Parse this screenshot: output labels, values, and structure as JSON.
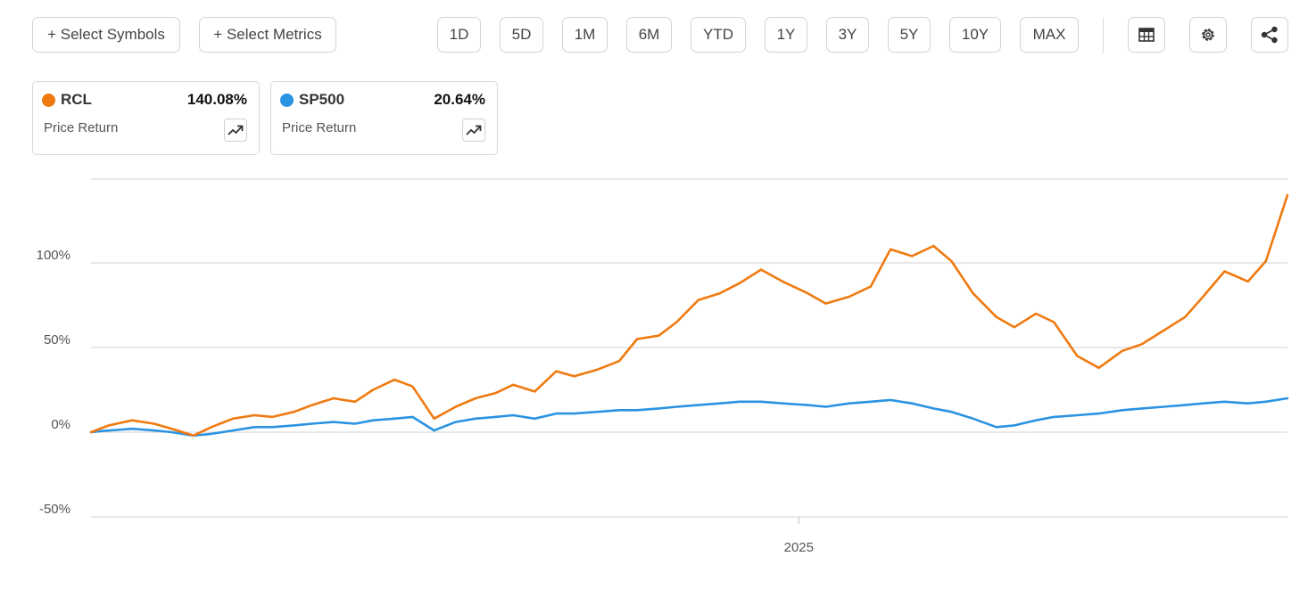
{
  "toolbar": {
    "select_symbols": "+ Select Symbols",
    "select_metrics": "+ Select Metrics",
    "ranges": [
      "1D",
      "5D",
      "1M",
      "6M",
      "YTD",
      "1Y",
      "3Y",
      "5Y",
      "10Y",
      "MAX"
    ],
    "icons": [
      "table-icon",
      "gear-icon",
      "share-icon"
    ]
  },
  "legend": [
    {
      "name": "RCL",
      "value": "140.08%",
      "subtitle": "Price Return",
      "color": "#f07a10"
    },
    {
      "name": "SP500",
      "value": "20.64%",
      "subtitle": "Price Return",
      "color": "#2a93e2"
    }
  ],
  "chart_data": {
    "type": "line",
    "title": "",
    "xlabel": "",
    "ylabel": "",
    "ylim": [
      -50,
      150
    ],
    "yticks": [
      -50,
      0,
      50,
      100
    ],
    "ytick_labels": [
      "-50%",
      "0%",
      "50%",
      "100%"
    ],
    "xtick_labels": [
      "2025"
    ],
    "grid": "horizontal",
    "series": [
      {
        "name": "RCL",
        "color": "#f07a10",
        "x": [
          "2023-12-04",
          "2023-12-14",
          "2023-12-27",
          "2024-01-08",
          "2024-01-18",
          "2024-01-30",
          "2024-02-09",
          "2024-02-21",
          "2024-03-04",
          "2024-03-14",
          "2024-03-26",
          "2024-04-05",
          "2024-04-17",
          "2024-04-29",
          "2024-05-09",
          "2024-05-21",
          "2024-05-31",
          "2024-06-12",
          "2024-06-24",
          "2024-07-05",
          "2024-07-16",
          "2024-07-26",
          "2024-08-07",
          "2024-08-19",
          "2024-08-29",
          "2024-09-11",
          "2024-09-23",
          "2024-10-03",
          "2024-10-15",
          "2024-10-25",
          "2024-11-06",
          "2024-11-18",
          "2024-11-29",
          "2024-12-11",
          "2024-12-23",
          "2025-01-06",
          "2025-01-16",
          "2025-01-29",
          "2025-02-10",
          "2025-02-21",
          "2025-03-05",
          "2025-03-17",
          "2025-03-27",
          "2025-04-08",
          "2025-04-21",
          "2025-05-01",
          "2025-05-13",
          "2025-05-23",
          "2025-06-05",
          "2025-06-17",
          "2025-06-30",
          "2025-07-11",
          "2025-07-23",
          "2025-08-04",
          "2025-08-14",
          "2025-08-26",
          "2025-09-08",
          "2025-09-18",
          "2025-09-30"
        ],
        "values": [
          0,
          4,
          7,
          5,
          2,
          -2,
          3,
          8,
          10,
          9,
          12,
          16,
          20,
          18,
          25,
          31,
          27,
          8,
          15,
          20,
          23,
          28,
          24,
          36,
          33,
          37,
          42,
          55,
          57,
          65,
          78,
          82,
          88,
          96,
          89,
          82,
          76,
          80,
          86,
          108,
          104,
          110,
          101,
          82,
          68,
          62,
          70,
          65,
          45,
          38,
          48,
          52,
          60,
          68,
          80,
          95,
          89,
          101,
          140
        ]
      },
      {
        "name": "SP500",
        "color": "#2a93e2",
        "x": [
          "2023-12-04",
          "2023-12-14",
          "2023-12-27",
          "2024-01-08",
          "2024-01-18",
          "2024-01-30",
          "2024-02-09",
          "2024-02-21",
          "2024-03-04",
          "2024-03-14",
          "2024-03-26",
          "2024-04-05",
          "2024-04-17",
          "2024-04-29",
          "2024-05-09",
          "2024-05-21",
          "2024-05-31",
          "2024-06-12",
          "2024-06-24",
          "2024-07-05",
          "2024-07-16",
          "2024-07-26",
          "2024-08-07",
          "2024-08-19",
          "2024-08-29",
          "2024-09-11",
          "2024-09-23",
          "2024-10-03",
          "2024-10-15",
          "2024-10-25",
          "2024-11-06",
          "2024-11-18",
          "2024-11-29",
          "2024-12-11",
          "2024-12-23",
          "2025-01-06",
          "2025-01-16",
          "2025-01-29",
          "2025-02-10",
          "2025-02-21",
          "2025-03-05",
          "2025-03-17",
          "2025-03-27",
          "2025-04-08",
          "2025-04-21",
          "2025-05-01",
          "2025-05-13",
          "2025-05-23",
          "2025-06-05",
          "2025-06-17",
          "2025-06-30",
          "2025-07-11",
          "2025-07-23",
          "2025-08-04",
          "2025-08-14",
          "2025-08-26",
          "2025-09-08",
          "2025-09-18",
          "2025-09-30"
        ],
        "values": [
          0,
          1,
          2,
          1,
          0,
          -2,
          -1,
          1,
          3,
          3,
          4,
          5,
          6,
          5,
          7,
          8,
          9,
          1,
          6,
          8,
          9,
          10,
          8,
          11,
          11,
          12,
          13,
          13,
          14,
          15,
          16,
          17,
          18,
          18,
          17,
          16,
          15,
          17,
          18,
          19,
          17,
          14,
          12,
          8,
          3,
          4,
          7,
          9,
          10,
          11,
          13,
          14,
          15,
          16,
          17,
          18,
          17,
          18,
          20
        ]
      }
    ]
  }
}
